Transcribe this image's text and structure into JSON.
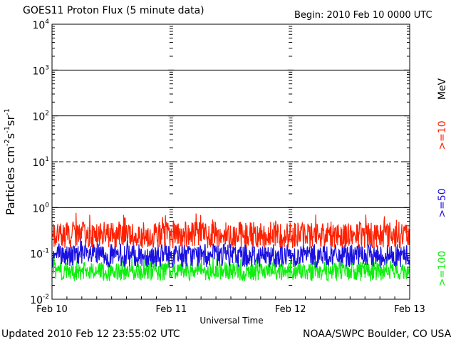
{
  "header": {
    "title": "GOES11 Proton Flux (5 minute data)",
    "begin": "Begin: 2010 Feb 10 0000 UTC"
  },
  "footer": {
    "updated": "Updated 2010 Feb 12 23:55:02 UTC",
    "credit": "NOAA/SWPC Boulder, CO USA"
  },
  "chart_data": {
    "type": "line",
    "title": "GOES11 Proton Flux (5 minute data)",
    "xlabel": "Universal Time",
    "ylabel": "Particles cm⁻²s⁻¹sr⁻¹",
    "ylabel_parts": [
      "Particles cm",
      "-2",
      "s",
      "-1",
      "sr",
      "-1"
    ],
    "y_scale": "log",
    "ylim": [
      0.01,
      10000
    ],
    "y_ticks": [
      {
        "base": "10",
        "exp": "-2",
        "value": 0.01
      },
      {
        "base": "10",
        "exp": "-1",
        "value": 0.1
      },
      {
        "base": "10",
        "exp": "0",
        "value": 1
      },
      {
        "base": "10",
        "exp": "1",
        "value": 10
      },
      {
        "base": "10",
        "exp": "2",
        "value": 100
      },
      {
        "base": "10",
        "exp": "3",
        "value": 1000
      },
      {
        "base": "10",
        "exp": "4",
        "value": 10000
      }
    ],
    "x_ticks": [
      "Feb 10",
      "Feb 11",
      "Feb 12",
      "Feb 13"
    ],
    "xlim": [
      "2010-02-10",
      "2010-02-13"
    ],
    "threshold_lines": [
      {
        "value": 1,
        "style": "solid"
      },
      {
        "value": 10,
        "style": "dashed"
      },
      {
        "value": 100,
        "style": "solid"
      },
      {
        "value": 1000,
        "style": "solid"
      }
    ],
    "energy_unit": "MeV",
    "series": [
      {
        "name": ">=10",
        "color": "#ff2000",
        "typical_range": [
          0.13,
          0.5
        ],
        "peak": 0.8
      },
      {
        "name": ">=50",
        "color": "#1a10e0",
        "typical_range": [
          0.05,
          0.16
        ],
        "peak": 0.25
      },
      {
        "name": ">=100",
        "color": "#10ee10",
        "typical_range": [
          0.025,
          0.065
        ],
        "peak": 0.085
      }
    ]
  }
}
